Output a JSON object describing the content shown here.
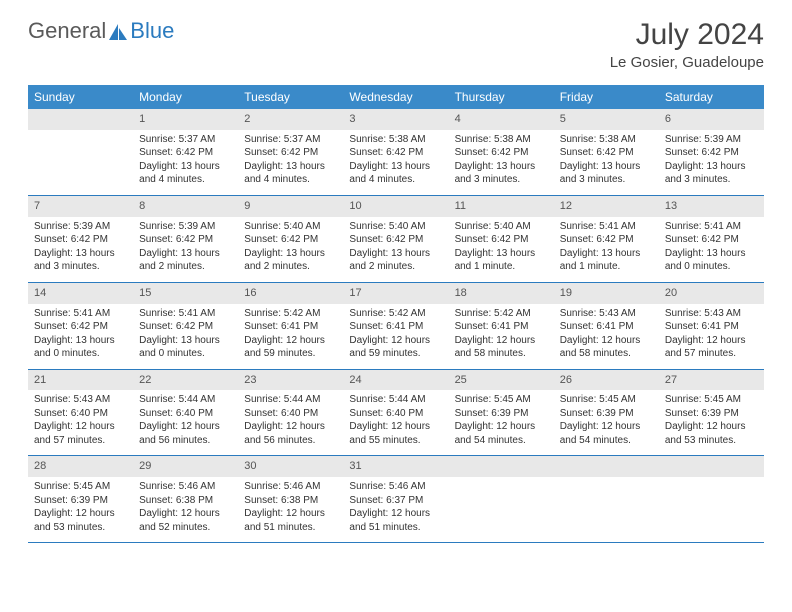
{
  "logo": {
    "text1": "General",
    "text2": "Blue"
  },
  "title": "July 2024",
  "subtitle": "Le Gosier, Guadeloupe",
  "colors": {
    "header_bg": "#3a8ac9",
    "header_text": "#ffffff",
    "daynum_bg": "#e8e8e8",
    "border": "#2b7bbf",
    "body_text": "#333333"
  },
  "fontsize": {
    "title": 30,
    "subtitle": 15,
    "weekday": 12,
    "daynum": 11,
    "body": 10
  },
  "weekdays": [
    "Sunday",
    "Monday",
    "Tuesday",
    "Wednesday",
    "Thursday",
    "Friday",
    "Saturday"
  ],
  "weeks": [
    [
      {
        "n": "",
        "lines": []
      },
      {
        "n": "1",
        "lines": [
          "Sunrise: 5:37 AM",
          "Sunset: 6:42 PM",
          "Daylight: 13 hours and 4 minutes."
        ]
      },
      {
        "n": "2",
        "lines": [
          "Sunrise: 5:37 AM",
          "Sunset: 6:42 PM",
          "Daylight: 13 hours and 4 minutes."
        ]
      },
      {
        "n": "3",
        "lines": [
          "Sunrise: 5:38 AM",
          "Sunset: 6:42 PM",
          "Daylight: 13 hours and 4 minutes."
        ]
      },
      {
        "n": "4",
        "lines": [
          "Sunrise: 5:38 AM",
          "Sunset: 6:42 PM",
          "Daylight: 13 hours and 3 minutes."
        ]
      },
      {
        "n": "5",
        "lines": [
          "Sunrise: 5:38 AM",
          "Sunset: 6:42 PM",
          "Daylight: 13 hours and 3 minutes."
        ]
      },
      {
        "n": "6",
        "lines": [
          "Sunrise: 5:39 AM",
          "Sunset: 6:42 PM",
          "Daylight: 13 hours and 3 minutes."
        ]
      }
    ],
    [
      {
        "n": "7",
        "lines": [
          "Sunrise: 5:39 AM",
          "Sunset: 6:42 PM",
          "Daylight: 13 hours and 3 minutes."
        ]
      },
      {
        "n": "8",
        "lines": [
          "Sunrise: 5:39 AM",
          "Sunset: 6:42 PM",
          "Daylight: 13 hours and 2 minutes."
        ]
      },
      {
        "n": "9",
        "lines": [
          "Sunrise: 5:40 AM",
          "Sunset: 6:42 PM",
          "Daylight: 13 hours and 2 minutes."
        ]
      },
      {
        "n": "10",
        "lines": [
          "Sunrise: 5:40 AM",
          "Sunset: 6:42 PM",
          "Daylight: 13 hours and 2 minutes."
        ]
      },
      {
        "n": "11",
        "lines": [
          "Sunrise: 5:40 AM",
          "Sunset: 6:42 PM",
          "Daylight: 13 hours and 1 minute."
        ]
      },
      {
        "n": "12",
        "lines": [
          "Sunrise: 5:41 AM",
          "Sunset: 6:42 PM",
          "Daylight: 13 hours and 1 minute."
        ]
      },
      {
        "n": "13",
        "lines": [
          "Sunrise: 5:41 AM",
          "Sunset: 6:42 PM",
          "Daylight: 13 hours and 0 minutes."
        ]
      }
    ],
    [
      {
        "n": "14",
        "lines": [
          "Sunrise: 5:41 AM",
          "Sunset: 6:42 PM",
          "Daylight: 13 hours and 0 minutes."
        ]
      },
      {
        "n": "15",
        "lines": [
          "Sunrise: 5:41 AM",
          "Sunset: 6:42 PM",
          "Daylight: 13 hours and 0 minutes."
        ]
      },
      {
        "n": "16",
        "lines": [
          "Sunrise: 5:42 AM",
          "Sunset: 6:41 PM",
          "Daylight: 12 hours and 59 minutes."
        ]
      },
      {
        "n": "17",
        "lines": [
          "Sunrise: 5:42 AM",
          "Sunset: 6:41 PM",
          "Daylight: 12 hours and 59 minutes."
        ]
      },
      {
        "n": "18",
        "lines": [
          "Sunrise: 5:42 AM",
          "Sunset: 6:41 PM",
          "Daylight: 12 hours and 58 minutes."
        ]
      },
      {
        "n": "19",
        "lines": [
          "Sunrise: 5:43 AM",
          "Sunset: 6:41 PM",
          "Daylight: 12 hours and 58 minutes."
        ]
      },
      {
        "n": "20",
        "lines": [
          "Sunrise: 5:43 AM",
          "Sunset: 6:41 PM",
          "Daylight: 12 hours and 57 minutes."
        ]
      }
    ],
    [
      {
        "n": "21",
        "lines": [
          "Sunrise: 5:43 AM",
          "Sunset: 6:40 PM",
          "Daylight: 12 hours and 57 minutes."
        ]
      },
      {
        "n": "22",
        "lines": [
          "Sunrise: 5:44 AM",
          "Sunset: 6:40 PM",
          "Daylight: 12 hours and 56 minutes."
        ]
      },
      {
        "n": "23",
        "lines": [
          "Sunrise: 5:44 AM",
          "Sunset: 6:40 PM",
          "Daylight: 12 hours and 56 minutes."
        ]
      },
      {
        "n": "24",
        "lines": [
          "Sunrise: 5:44 AM",
          "Sunset: 6:40 PM",
          "Daylight: 12 hours and 55 minutes."
        ]
      },
      {
        "n": "25",
        "lines": [
          "Sunrise: 5:45 AM",
          "Sunset: 6:39 PM",
          "Daylight: 12 hours and 54 minutes."
        ]
      },
      {
        "n": "26",
        "lines": [
          "Sunrise: 5:45 AM",
          "Sunset: 6:39 PM",
          "Daylight: 12 hours and 54 minutes."
        ]
      },
      {
        "n": "27",
        "lines": [
          "Sunrise: 5:45 AM",
          "Sunset: 6:39 PM",
          "Daylight: 12 hours and 53 minutes."
        ]
      }
    ],
    [
      {
        "n": "28",
        "lines": [
          "Sunrise: 5:45 AM",
          "Sunset: 6:39 PM",
          "Daylight: 12 hours and 53 minutes."
        ]
      },
      {
        "n": "29",
        "lines": [
          "Sunrise: 5:46 AM",
          "Sunset: 6:38 PM",
          "Daylight: 12 hours and 52 minutes."
        ]
      },
      {
        "n": "30",
        "lines": [
          "Sunrise: 5:46 AM",
          "Sunset: 6:38 PM",
          "Daylight: 12 hours and 51 minutes."
        ]
      },
      {
        "n": "31",
        "lines": [
          "Sunrise: 5:46 AM",
          "Sunset: 6:37 PM",
          "Daylight: 12 hours and 51 minutes."
        ]
      },
      {
        "n": "",
        "lines": []
      },
      {
        "n": "",
        "lines": []
      },
      {
        "n": "",
        "lines": []
      }
    ]
  ]
}
